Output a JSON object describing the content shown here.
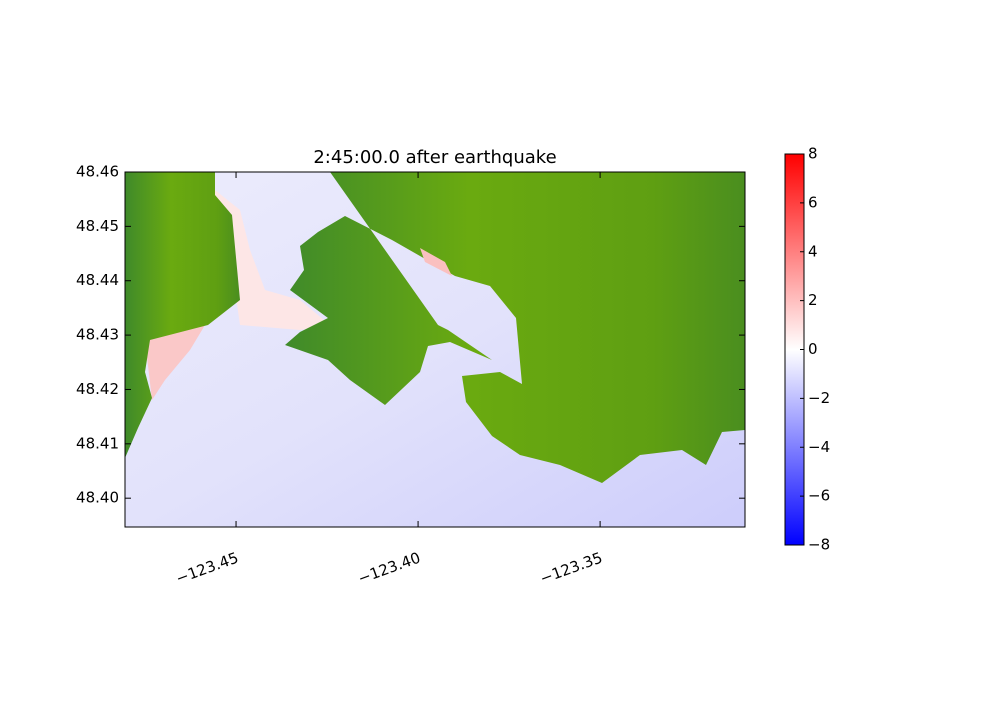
{
  "chart_data": {
    "type": "heatmap",
    "title": "2:45:00.0 after earthquake",
    "xlim": [
      -123.4805,
      -123.3102
    ],
    "ylim": [
      48.3947,
      48.46
    ],
    "xticks": [
      {
        "value": -123.45,
        "label": "−123.45"
      },
      {
        "value": -123.4,
        "label": "−123.40"
      },
      {
        "value": -123.35,
        "label": "−123.35"
      }
    ],
    "yticks": [
      {
        "value": 48.4,
        "label": "48.40"
      },
      {
        "value": 48.41,
        "label": "48.41"
      },
      {
        "value": 48.42,
        "label": "48.42"
      },
      {
        "value": 48.43,
        "label": "48.43"
      },
      {
        "value": 48.44,
        "label": "48.44"
      },
      {
        "value": 48.45,
        "label": "48.45"
      },
      {
        "value": 48.46,
        "label": "48.46"
      }
    ],
    "colorbar": {
      "lim": [
        -8,
        8
      ],
      "colors": [
        "#0000ff",
        "#ffffff",
        "#ff0000"
      ],
      "ticks": [
        {
          "value": -8,
          "label": "−8"
        },
        {
          "value": -6,
          "label": "−6"
        },
        {
          "value": -4,
          "label": "−4"
        },
        {
          "value": -2,
          "label": "−2"
        },
        0,
        2,
        4,
        6,
        8
      ]
    }
  }
}
